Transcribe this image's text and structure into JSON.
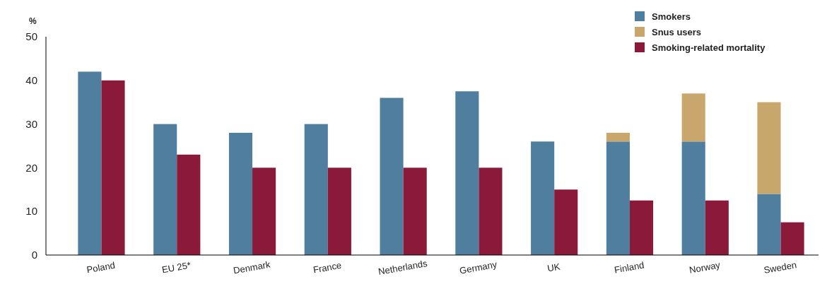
{
  "chart_data": {
    "type": "bar",
    "ylabel": "%",
    "categories": [
      "Poland",
      "EU 25*",
      "Denmark",
      "France",
      "Netherlands",
      "Germany",
      "UK",
      "Finland",
      "Norway",
      "Sweden"
    ],
    "series": [
      {
        "name": "Smokers",
        "color": "#4f7e9e",
        "values": [
          42,
          30,
          28,
          30,
          36,
          37.5,
          26,
          26,
          26,
          14
        ]
      },
      {
        "name": "Snus users",
        "color": "#c9a66b",
        "base": [
          null,
          null,
          null,
          null,
          null,
          null,
          null,
          26,
          26,
          14
        ],
        "values": [
          null,
          null,
          null,
          null,
          null,
          null,
          null,
          2,
          11,
          21
        ]
      },
      {
        "name": "Smoking-related mortality",
        "color": "#8b1a3a",
        "values": [
          40,
          23,
          20,
          20,
          20,
          20,
          15,
          12.5,
          12.5,
          7.5
        ]
      }
    ],
    "ylim": [
      0,
      50
    ],
    "yticks": [
      0,
      10,
      20,
      30,
      40,
      50
    ],
    "grid": false,
    "legend": "top right"
  }
}
